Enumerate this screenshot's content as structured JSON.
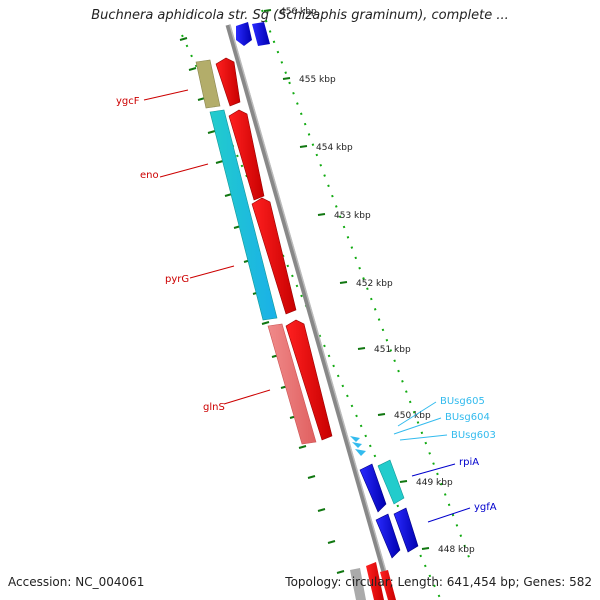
{
  "title": "Buchnera aphidicola str. Sg (Schizaphis graminum), complete ...",
  "footer": {
    "accession": "Accession: NC_004061",
    "summary": "Topology: circular; Length: 641,454 bp; Genes: 582"
  },
  "ticks": [
    "456 kbp",
    "455 kbp",
    "454 kbp",
    "453 kbp",
    "452 kbp",
    "451 kbp",
    "450 kbp",
    "449 kbp",
    "448 kbp"
  ],
  "genes": [
    {
      "name": "ygcF",
      "color": "#cc0000"
    },
    {
      "name": "eno",
      "color": "#cc0000"
    },
    {
      "name": "pyrG",
      "color": "#cc0000"
    },
    {
      "name": "glnS",
      "color": "#cc0000"
    },
    {
      "name": "BUsg605",
      "color": "#33bbee"
    },
    {
      "name": "BUsg604",
      "color": "#33bbee"
    },
    {
      "name": "BUsg603",
      "color": "#33bbee"
    },
    {
      "name": "rpiA",
      "color": "#0000cc"
    },
    {
      "name": "ygfA",
      "color": "#0000cc"
    }
  ],
  "colors": {
    "red_feature": "#ee0000",
    "cyan_feature": "#22cccc",
    "blue_feature": "#1111dd",
    "olive_feature": "#b3ad6a",
    "pink_feature": "#ee7777",
    "backbone": "#888888",
    "tick_green": "#117711"
  }
}
